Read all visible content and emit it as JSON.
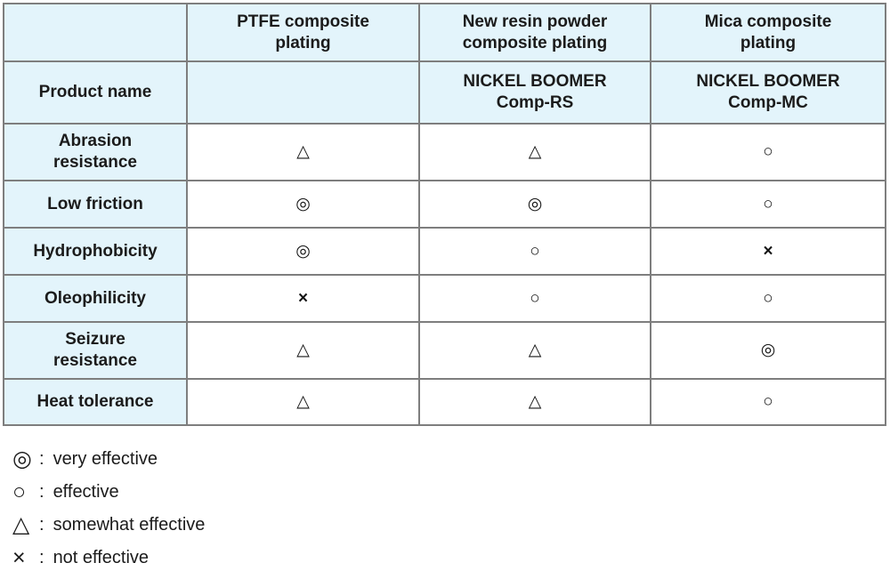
{
  "table": {
    "corner": "",
    "product_row_label": "Product name",
    "columns": [
      {
        "header_lines": [
          "PTFE composite",
          "plating"
        ],
        "product_lines": [
          "",
          ""
        ]
      },
      {
        "header_lines": [
          "New resin powder",
          "composite plating"
        ],
        "product_lines": [
          "NICKEL BOOMER",
          "Comp-RS"
        ]
      },
      {
        "header_lines": [
          "Mica composite",
          "plating"
        ],
        "product_lines": [
          "NICKEL BOOMER",
          "Comp-MC"
        ]
      }
    ],
    "rows": [
      {
        "label_lines": [
          "Abrasion",
          "resistance"
        ],
        "values": [
          "△",
          "△",
          "○"
        ]
      },
      {
        "label_lines": [
          "Low friction",
          ""
        ],
        "values": [
          "◎",
          "◎",
          "○"
        ]
      },
      {
        "label_lines": [
          "Hydrophobicity",
          ""
        ],
        "values": [
          "◎",
          "○",
          "×"
        ]
      },
      {
        "label_lines": [
          "Oleophilicity",
          ""
        ],
        "values": [
          "×",
          "○",
          "○"
        ]
      },
      {
        "label_lines": [
          "Seizure",
          "resistance"
        ],
        "values": [
          "△",
          "△",
          "◎"
        ]
      },
      {
        "label_lines": [
          "Heat tolerance",
          ""
        ],
        "values": [
          "△",
          "△",
          "○"
        ]
      }
    ]
  },
  "legend": {
    "separator": ":",
    "items": [
      {
        "symbol": "◎",
        "meaning": "very effective"
      },
      {
        "symbol": "○",
        "meaning": "effective"
      },
      {
        "symbol": "△",
        "meaning": "somewhat effective"
      },
      {
        "symbol": "×",
        "meaning": "not effective"
      }
    ]
  },
  "colors": {
    "cell_blue": "#e3f4fb",
    "grid_gray": "#7e7e7e",
    "bold_border": "#141414"
  },
  "chart_data": {
    "type": "table",
    "title": "",
    "columns": [
      "",
      "PTFE composite plating",
      "New resin powder composite plating",
      "Mica composite plating"
    ],
    "rows": [
      [
        "Product name",
        "",
        "NICKEL BOOMER Comp-RS",
        "NICKEL BOOMER Comp-MC"
      ],
      [
        "Abrasion resistance",
        "△",
        "△",
        "○"
      ],
      [
        "Low friction",
        "◎",
        "◎",
        "○"
      ],
      [
        "Hydrophobicity",
        "◎",
        "○",
        "×"
      ],
      [
        "Oleophilicity",
        "×",
        "○",
        "○"
      ],
      [
        "Seizure resistance",
        "△",
        "△",
        "◎"
      ],
      [
        "Heat tolerance",
        "△",
        "△",
        "○"
      ]
    ],
    "legend": {
      "◎": "very effective",
      "○": "effective",
      "△": "somewhat effective",
      "×": "not effective"
    },
    "layout_hints": {
      "highlighted_columns": [
        "New resin powder composite plating",
        "Mica composite plating"
      ],
      "header_background": "#e3f4fb",
      "label_column_background": "#e3f4fb"
    }
  }
}
